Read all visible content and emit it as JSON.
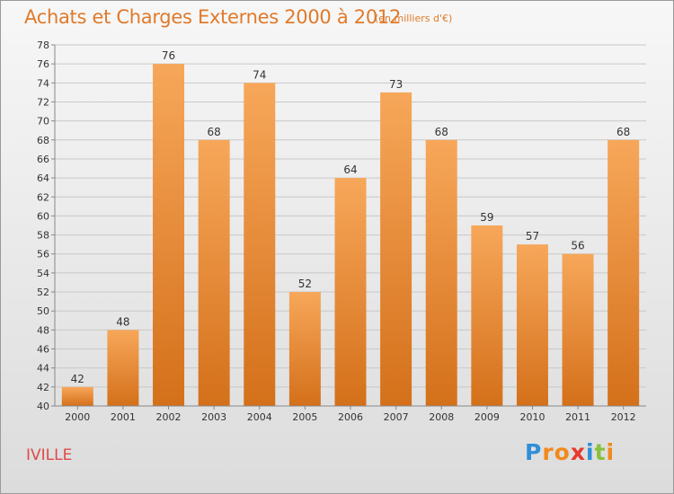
{
  "header": {
    "title": "Achats et Charges Externes 2000 à 2012",
    "subtitle": "(en milliers d'€)"
  },
  "commune": "IVILLE",
  "logo": {
    "letters": [
      "P",
      "r",
      "o",
      "x",
      "i",
      "t",
      "i"
    ],
    "colors": [
      "#2f8fd8",
      "#f08a1c",
      "#f08a1c",
      "#e8382c",
      "#2f8fd8",
      "#88c13e",
      "#f08a1c"
    ]
  },
  "colors": {
    "bar_light": "#f7a75a",
    "bar_dark": "#d4701a",
    "title": "#e07a2a",
    "commune": "#e04848"
  },
  "chart_data": {
    "type": "bar",
    "title": "Achats et Charges Externes 2000 à 2012",
    "categories": [
      "2000",
      "2001",
      "2002",
      "2003",
      "2004",
      "2005",
      "2006",
      "2007",
      "2008",
      "2009",
      "2010",
      "2011",
      "2012"
    ],
    "values": [
      42,
      48,
      76,
      68,
      74,
      52,
      64,
      73,
      68,
      59,
      57,
      56,
      68
    ],
    "ylim": [
      40,
      78
    ],
    "ytick_step": 2,
    "grid": true,
    "data_labels": true
  }
}
